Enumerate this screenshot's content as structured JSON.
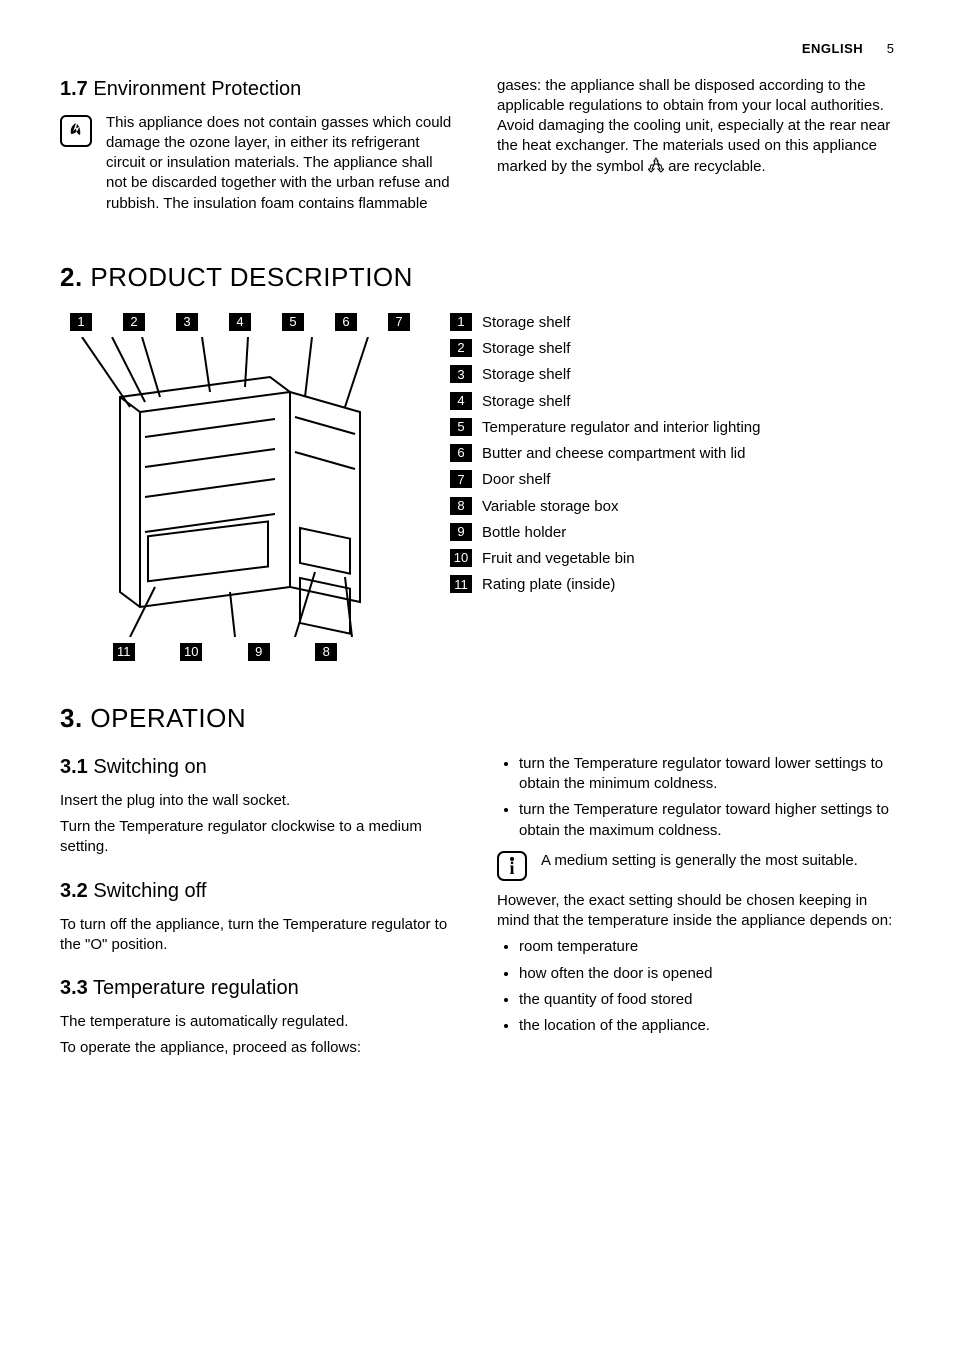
{
  "header": {
    "language": "ENGLISH",
    "page_number": "5"
  },
  "section_1_7": {
    "heading_num": "1.7",
    "heading_text": "Environment Protection",
    "col1_text": "This appliance does not contain gasses which could damage the ozone layer, in either its refrigerant circuit or insulation materials. The appliance shall not be discarded together with the urban refuse and rubbish. The insulation foam contains flammable",
    "col2_text_before": "gases: the appliance shall be disposed according to the applicable regulations to obtain from your local authorities. Avoid damaging the cooling unit, especially at the rear near the heat exchanger. The materials used on this appliance marked by the symbol ",
    "col2_text_after": " are recyclable."
  },
  "section_2": {
    "heading_num": "2.",
    "heading_text": "PRODUCT DESCRIPTION",
    "top_callouts": [
      "1",
      "2",
      "3",
      "4",
      "5",
      "6",
      "7"
    ],
    "bottom_callouts": [
      "11",
      "10",
      "9",
      "8"
    ],
    "legend": [
      {
        "n": "1",
        "label": "Storage shelf"
      },
      {
        "n": "2",
        "label": "Storage shelf"
      },
      {
        "n": "3",
        "label": "Storage shelf"
      },
      {
        "n": "4",
        "label": "Storage shelf"
      },
      {
        "n": "5",
        "label": "Temperature regulator and interior lighting"
      },
      {
        "n": "6",
        "label": "Butter and cheese compartment with lid"
      },
      {
        "n": "7",
        "label": "Door shelf"
      },
      {
        "n": "8",
        "label": "Variable storage box"
      },
      {
        "n": "9",
        "label": "Bottle holder"
      },
      {
        "n": "10",
        "label": "Fruit and vegetable bin"
      },
      {
        "n": "11",
        "label": "Rating plate (inside)"
      }
    ]
  },
  "section_3": {
    "heading_num": "3.",
    "heading_text": "OPERATION",
    "s31_num": "3.1",
    "s31_title": "Switching on",
    "s31_p1": "Insert the plug into the wall socket.",
    "s31_p2": "Turn the Temperature regulator clockwise to a medium setting.",
    "s32_num": "3.2",
    "s32_title": "Switching off",
    "s32_p1": "To turn off the appliance, turn the Temperature regulator to the \"O\" position.",
    "s33_num": "3.3",
    "s33_title": "Temperature regulation",
    "s33_p1": "The temperature is automatically regulated.",
    "s33_p2": "To operate the appliance, proceed as follows:",
    "col2_bullets1": [
      "turn the Temperature regulator toward lower settings to obtain the minimum coldness.",
      "turn the Temperature regulator toward higher settings to obtain the maximum coldness."
    ],
    "info_text": "A medium setting is generally the most suitable.",
    "col2_p_after": "However, the exact setting should be chosen keeping in mind that the temperature inside the appliance depends on:",
    "col2_bullets2": [
      "room temperature",
      "how often the door is opened",
      "the quantity of food stored",
      "the location of the appliance."
    ]
  }
}
